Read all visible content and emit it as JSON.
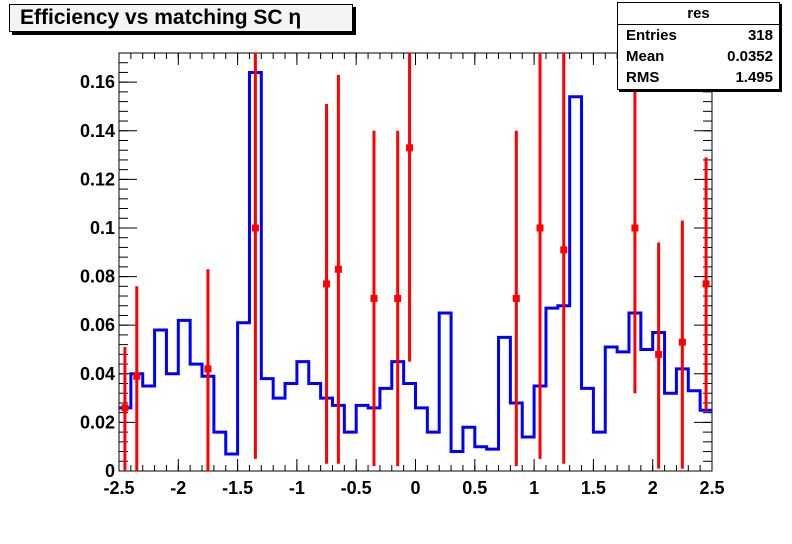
{
  "chart_data": {
    "type": "step-histogram-with-points",
    "title": "Efficiency vs matching SC η",
    "xlabel": "",
    "ylabel": "",
    "xlim": [
      -2.5,
      2.5
    ],
    "ylim": [
      0,
      0.172
    ],
    "x_ticks": [
      "-2.5",
      "-2",
      "-1.5",
      "-1",
      "-0.5",
      "0",
      "0.5",
      "1",
      "1.5",
      "2",
      "2.5"
    ],
    "y_ticks": [
      "0",
      "0.02",
      "0.04",
      "0.06",
      "0.08",
      "0.1",
      "0.12",
      "0.14",
      "0.16"
    ],
    "grid": false,
    "colors": {
      "histogram": "#0000ff",
      "points": "#ff0000",
      "axes": "#000000"
    },
    "series": [
      {
        "type": "step",
        "bin_edges": [
          -2.5,
          -2.4,
          -2.3,
          -2.2,
          -2.1,
          -2.0,
          -1.9,
          -1.8,
          -1.7,
          -1.6,
          -1.5,
          -1.4,
          -1.3,
          -1.2,
          -1.1,
          -1.0,
          -0.9,
          -0.8,
          -0.7,
          -0.6,
          -0.5,
          -0.4,
          -0.3,
          -0.2,
          -0.1,
          0.0,
          0.1,
          0.2,
          0.3,
          0.4,
          0.5,
          0.6,
          0.7,
          0.8,
          0.9,
          1.0,
          1.1,
          1.2,
          1.3,
          1.4,
          1.5,
          1.6,
          1.7,
          1.8,
          1.9,
          2.0,
          2.1,
          2.2,
          2.3,
          2.4,
          2.5
        ],
        "values": [
          0.026,
          0.04,
          0.035,
          0.058,
          0.04,
          0.062,
          0.044,
          0.039,
          0.016,
          0.007,
          0.061,
          0.164,
          0.038,
          0.03,
          0.036,
          0.045,
          0.036,
          0.03,
          0.027,
          0.016,
          0.027,
          0.026,
          0.034,
          0.045,
          0.036,
          0.026,
          0.016,
          0.065,
          0.008,
          0.018,
          0.01,
          0.009,
          0.055,
          0.028,
          0.014,
          0.035,
          0.067,
          0.068,
          0.154,
          0.034,
          0.016,
          0.051,
          0.049,
          0.065,
          0.05,
          0.057,
          0.032,
          0.042,
          0.033,
          0.025
        ]
      },
      {
        "type": "errorbar",
        "points": [
          {
            "x": -2.45,
            "y": 0.026,
            "low": 0.0,
            "high": 0.051
          },
          {
            "x": -2.35,
            "y": 0.039,
            "low": 0.0,
            "high": 0.076
          },
          {
            "x": -1.75,
            "y": 0.042,
            "low": 0.0,
            "high": 0.083
          },
          {
            "x": -1.35,
            "y": 0.1,
            "low": 0.005,
            "high": 0.172
          },
          {
            "x": -0.75,
            "y": 0.077,
            "low": 0.003,
            "high": 0.151
          },
          {
            "x": -0.65,
            "y": 0.083,
            "low": 0.003,
            "high": 0.163
          },
          {
            "x": -0.35,
            "y": 0.071,
            "low": 0.002,
            "high": 0.14
          },
          {
            "x": -0.15,
            "y": 0.071,
            "low": 0.002,
            "high": 0.14
          },
          {
            "x": -0.05,
            "y": 0.133,
            "low": 0.045,
            "high": 0.172
          },
          {
            "x": 0.85,
            "y": 0.071,
            "low": 0.002,
            "high": 0.14
          },
          {
            "x": 1.05,
            "y": 0.1,
            "low": 0.005,
            "high": 0.172
          },
          {
            "x": 1.25,
            "y": 0.091,
            "low": 0.003,
            "high": 0.172
          },
          {
            "x": 1.85,
            "y": 0.1,
            "low": 0.032,
            "high": 0.172
          },
          {
            "x": 2.05,
            "y": 0.048,
            "low": 0.001,
            "high": 0.094
          },
          {
            "x": 2.25,
            "y": 0.053,
            "low": 0.001,
            "high": 0.103
          },
          {
            "x": 2.45,
            "y": 0.077,
            "low": 0.025,
            "high": 0.129
          }
        ]
      }
    ]
  },
  "stats": {
    "name": "res",
    "rows": [
      {
        "label": "Entries",
        "value": "318"
      },
      {
        "label": "Mean",
        "value": "0.0352"
      },
      {
        "label": "RMS",
        "value": "1.495"
      }
    ]
  }
}
